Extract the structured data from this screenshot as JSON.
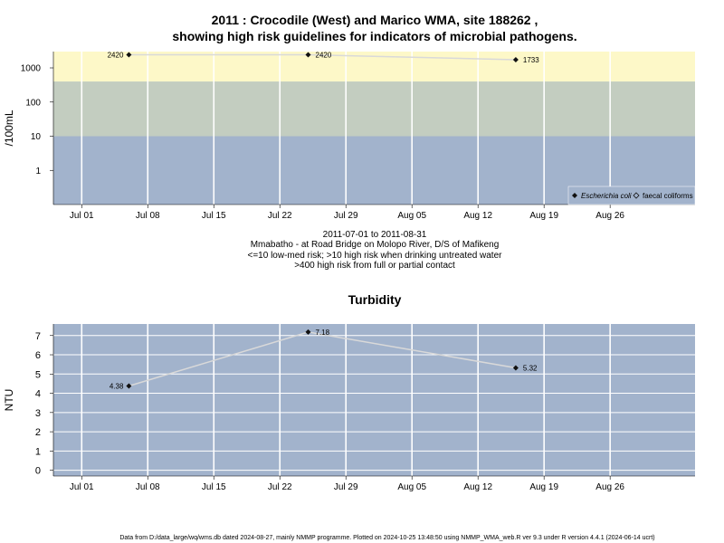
{
  "title_line1": "2011 : Crocodile (West) and Marico WMA, site 188262 ,",
  "title_line2": "showing high risk guidelines for indicators of microbial pathogens.",
  "caption_lines": [
    "2011-07-01 to 2011-08-31",
    "Mmabatho - at Road Bridge on Molopo River, D/S of Mafikeng",
    "<=10 low-med risk; >10 high risk when drinking untreated water",
    ">400 high risk from full or partial contact"
  ],
  "footer": "Data from D:/data_large/wq/wms.db dated 2024-08-27, mainly NMMP programme. Plotted on 2024-10-25 13:48:50 using NMMP_WMA_web.R ver 9.3 under R version 4.4.1 (2024-06-14 ucrt)",
  "colors": {
    "band_low": "#a2b3cc",
    "band_mid": "#c3cdc0",
    "band_high": "#fdf8c8",
    "panel_bg": "#a2b3cc",
    "grid": "#ffffff",
    "line": "#d9d9d9",
    "marker": "#111111"
  },
  "chart_data": [
    {
      "type": "line",
      "title": "",
      "ylabel": "/100mL",
      "y_scale": "log",
      "ylim": [
        0.1,
        3000
      ],
      "y_ticks": [
        "1",
        "10",
        "100",
        "1000"
      ],
      "xlim": [
        "2011-06-28",
        "2011-09-04"
      ],
      "x_ticks": [
        "Jul 01",
        "Jul 08",
        "Jul 15",
        "Jul 22",
        "Jul 29",
        "Aug 05",
        "Aug 12",
        "Aug 19",
        "Aug 26"
      ],
      "bands": [
        {
          "from": 0.1,
          "to": 10,
          "color": "#a2b3cc"
        },
        {
          "from": 10,
          "to": 400,
          "color": "#c3cdc0"
        },
        {
          "from": 400,
          "to": 3000,
          "color": "#fdf8c8"
        }
      ],
      "series": [
        {
          "name": "Escherichia coli",
          "x": [
            "2011-07-06",
            "2011-07-25",
            "2011-08-16"
          ],
          "values": [
            2420,
            2420,
            1733
          ],
          "labels": [
            "2420",
            "2420",
            "1733"
          ]
        },
        {
          "name": "faecal coliforms",
          "x": [],
          "values": []
        }
      ],
      "legend": "bottom-right"
    },
    {
      "type": "line",
      "title": "Turbidity",
      "ylabel": "NTU",
      "ylim": [
        -0.3,
        7.6
      ],
      "y_ticks": [
        "0",
        "1",
        "2",
        "3",
        "4",
        "5",
        "6",
        "7"
      ],
      "xlim": [
        "2011-06-28",
        "2011-09-04"
      ],
      "x_ticks": [
        "Jul 01",
        "Jul 08",
        "Jul 15",
        "Jul 22",
        "Jul 29",
        "Aug 05",
        "Aug 12",
        "Aug 19",
        "Aug 26"
      ],
      "series": [
        {
          "x": [
            "2011-07-06",
            "2011-07-25",
            "2011-08-16"
          ],
          "values": [
            4.38,
            7.18,
            5.32
          ],
          "labels": [
            "4.38",
            "7.18",
            "5.32"
          ]
        }
      ],
      "legend": "none"
    }
  ]
}
